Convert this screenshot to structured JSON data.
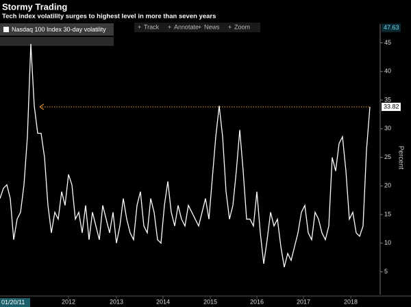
{
  "chart_data": {
    "type": "line",
    "title": "Stormy Trading",
    "subtitle": "Tech index volatility surges to highest level in more than seven years",
    "toolbar": [
      "Track",
      "Annotate",
      "News",
      "Zoom"
    ],
    "y_axis_label": "Percent",
    "x_start_label": "01/20/11",
    "max_label": 47.63,
    "series": [
      {
        "name": "Nasdaq 100 Index 30-day volatility",
        "color": "#ffffff",
        "values": [
          17.8,
          19.6,
          20.2,
          17.8,
          10.6,
          14.2,
          15.4,
          20.2,
          28.6,
          44.8,
          34.0,
          29.2,
          29.2,
          25.0,
          16.6,
          11.8,
          15.4,
          14.2,
          19.0,
          16.6,
          22.0,
          20.2,
          14.2,
          15.4,
          11.8,
          16.6,
          10.6,
          15.4,
          13.0,
          10.6,
          16.6,
          14.2,
          11.8,
          15.4,
          10.0,
          13.0,
          17.8,
          14.2,
          11.8,
          10.6,
          16.6,
          19.0,
          13.0,
          11.8,
          17.8,
          15.4,
          10.6,
          10.0,
          16.6,
          20.8,
          15.4,
          13.0,
          16.6,
          14.2,
          13.0,
          16.6,
          15.4,
          14.2,
          13.0,
          15.4,
          17.8,
          14.2,
          21.4,
          28.6,
          34.0,
          28.6,
          19.0,
          14.2,
          16.6,
          22.6,
          29.8,
          22.6,
          14.2,
          14.2,
          13.0,
          19.0,
          11.8,
          6.4,
          10.6,
          15.4,
          13.0,
          14.2,
          9.4,
          5.8,
          8.2,
          7.0,
          9.4,
          11.8,
          15.4,
          16.6,
          11.8,
          10.6,
          15.4,
          14.2,
          11.8,
          10.6,
          13.0,
          25.0,
          22.6,
          27.4,
          28.6,
          22.6,
          14.2,
          15.4,
          11.8,
          11.2,
          13.0,
          26.2,
          33.82
        ]
      }
    ],
    "reference_color": "#e0902a",
    "xlim": [
      0,
      111
    ],
    "xticks": [
      {
        "value": 20,
        "label": "2012"
      },
      {
        "value": 34,
        "label": "2013"
      },
      {
        "value": 47.6,
        "label": "2014"
      },
      {
        "value": 61.4,
        "label": "2015"
      },
      {
        "value": 75,
        "label": "2016"
      },
      {
        "value": 88.6,
        "label": "2017"
      },
      {
        "value": 102.4,
        "label": "2018"
      }
    ],
    "ylim": [
      1,
      48.3
    ],
    "yticks": [
      5,
      10,
      15,
      20,
      25,
      30,
      35,
      40,
      45
    ]
  }
}
